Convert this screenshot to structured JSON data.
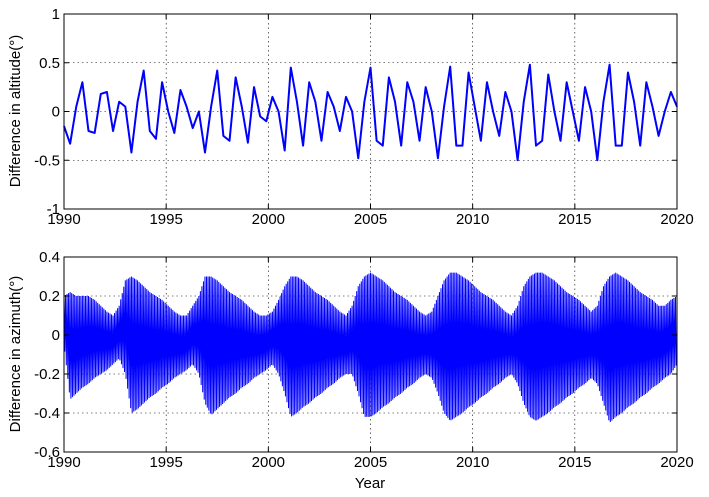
{
  "chart_data": [
    {
      "type": "line",
      "title": "",
      "xlabel": "",
      "ylabel": "Difference in altitude(°)",
      "xlim": [
        1990,
        2020
      ],
      "ylim": [
        -1,
        1
      ],
      "xticks": [
        "1990",
        "1995",
        "2000",
        "2005",
        "2010",
        "2015",
        "2020"
      ],
      "yticks": [
        "-1",
        "-0.5",
        "0",
        "0.5",
        "1"
      ],
      "grid": true,
      "series": [
        {
          "color": "#0000ff",
          "x": [
            1990.0,
            1990.3,
            1990.6,
            1990.9,
            1991.2,
            1991.5,
            1991.8,
            1992.1,
            1992.4,
            1992.7,
            1993.0,
            1993.3,
            1993.6,
            1993.9,
            1994.2,
            1994.5,
            1994.8,
            1995.1,
            1995.4,
            1995.7,
            1996.0,
            1996.3,
            1996.6,
            1996.9,
            1997.2,
            1997.5,
            1997.8,
            1998.1,
            1998.4,
            1998.7,
            1999.0,
            1999.3,
            1999.6,
            1999.9,
            2000.2,
            2000.5,
            2000.8,
            2001.1,
            2001.4,
            2001.7,
            2002.0,
            2002.3,
            2002.6,
            2002.9,
            2003.2,
            2003.5,
            2003.8,
            2004.1,
            2004.4,
            2004.7,
            2005.0,
            2005.3,
            2005.6,
            2005.9,
            2006.2,
            2006.5,
            2006.8,
            2007.1,
            2007.4,
            2007.7,
            2008.0,
            2008.3,
            2008.6,
            2008.9,
            2009.2,
            2009.5,
            2009.8,
            2010.1,
            2010.4,
            2010.7,
            2011.0,
            2011.3,
            2011.6,
            2011.9,
            2012.2,
            2012.5,
            2012.8,
            2013.1,
            2013.4,
            2013.7,
            2014.0,
            2014.3,
            2014.6,
            2014.9,
            2015.2,
            2015.5,
            2015.8,
            2016.1,
            2016.4,
            2016.7,
            2017.0,
            2017.3,
            2017.6,
            2017.9,
            2018.2,
            2018.5,
            2018.8,
            2019.1,
            2019.4,
            2019.7,
            2020.0
          ],
          "y": [
            -0.15,
            -0.33,
            0.05,
            0.3,
            -0.2,
            -0.22,
            0.18,
            0.2,
            -0.2,
            0.1,
            0.05,
            -0.42,
            0.1,
            0.42,
            -0.2,
            -0.28,
            0.3,
            0.0,
            -0.22,
            0.22,
            0.05,
            -0.17,
            0.0,
            -0.42,
            0.05,
            0.42,
            -0.25,
            -0.3,
            0.35,
            0.05,
            -0.32,
            0.25,
            -0.05,
            -0.1,
            0.15,
            0.0,
            -0.4,
            0.45,
            0.1,
            -0.35,
            0.3,
            0.1,
            -0.3,
            0.2,
            0.05,
            -0.2,
            0.15,
            0.0,
            -0.48,
            0.1,
            0.45,
            -0.3,
            -0.35,
            0.35,
            0.1,
            -0.35,
            0.3,
            0.1,
            -0.3,
            0.25,
            0.0,
            -0.48,
            0.05,
            0.46,
            -0.35,
            -0.35,
            0.4,
            0.05,
            -0.3,
            0.3,
            0.0,
            -0.25,
            0.2,
            0.0,
            -0.5,
            0.1,
            0.48,
            -0.35,
            -0.3,
            0.38,
            0.0,
            -0.3,
            0.3,
            0.0,
            -0.3,
            0.25,
            0.0,
            -0.5,
            0.1,
            0.48,
            -0.35,
            -0.35,
            0.4,
            0.1,
            -0.35,
            0.3,
            0.05,
            -0.25,
            0.0,
            0.2,
            0.05
          ]
        }
      ]
    },
    {
      "type": "line",
      "title": "",
      "xlabel": "Year",
      "ylabel": "Difference in azimuth(°)",
      "xlim": [
        1990,
        2020
      ],
      "ylim": [
        -0.6,
        0.4
      ],
      "xticks": [
        "1990",
        "1995",
        "2000",
        "2005",
        "2010",
        "2015",
        "2020"
      ],
      "yticks": [
        "-0.6",
        "-0.4",
        "-0.2",
        "0",
        "0.2",
        "0.4"
      ],
      "grid": true,
      "series": [
        {
          "color": "#0000ff",
          "x": [
            1990.0,
            1990.3,
            1990.6,
            1990.9,
            1991.2,
            1991.5,
            1991.8,
            1992.1,
            1992.4,
            1992.7,
            1993.0,
            1993.3,
            1993.6,
            1993.9,
            1994.2,
            1994.5,
            1994.8,
            1995.1,
            1995.4,
            1995.7,
            1996.0,
            1996.3,
            1996.6,
            1996.9,
            1997.2,
            1997.5,
            1997.8,
            1998.1,
            1998.4,
            1998.7,
            1999.0,
            1999.3,
            1999.6,
            1999.9,
            2000.2,
            2000.5,
            2000.8,
            2001.1,
            2001.4,
            2001.7,
            2002.0,
            2002.3,
            2002.6,
            2002.9,
            2003.2,
            2003.5,
            2003.8,
            2004.1,
            2004.4,
            2004.7,
            2005.0,
            2005.3,
            2005.6,
            2005.9,
            2006.2,
            2006.5,
            2006.8,
            2007.1,
            2007.4,
            2007.7,
            2008.0,
            2008.3,
            2008.6,
            2008.9,
            2009.2,
            2009.5,
            2009.8,
            2010.1,
            2010.4,
            2010.7,
            2011.0,
            2011.3,
            2011.6,
            2011.9,
            2012.2,
            2012.5,
            2012.8,
            2013.1,
            2013.4,
            2013.7,
            2014.0,
            2014.3,
            2014.6,
            2014.9,
            2015.2,
            2015.5,
            2015.8,
            2016.1,
            2016.4,
            2016.7,
            2017.0,
            2017.3,
            2017.6,
            2017.9,
            2018.2,
            2018.5,
            2018.8,
            2019.1,
            2019.4,
            2019.7,
            2020.0
          ],
          "ymax": [
            0.2,
            0.22,
            0.2,
            0.2,
            0.2,
            0.18,
            0.15,
            0.12,
            0.1,
            0.15,
            0.28,
            0.3,
            0.28,
            0.25,
            0.22,
            0.2,
            0.18,
            0.15,
            0.12,
            0.1,
            0.1,
            0.15,
            0.2,
            0.3,
            0.3,
            0.28,
            0.25,
            0.22,
            0.2,
            0.18,
            0.15,
            0.12,
            0.1,
            0.1,
            0.12,
            0.18,
            0.25,
            0.3,
            0.3,
            0.28,
            0.25,
            0.22,
            0.2,
            0.18,
            0.15,
            0.12,
            0.1,
            0.15,
            0.25,
            0.3,
            0.32,
            0.3,
            0.28,
            0.25,
            0.22,
            0.2,
            0.18,
            0.15,
            0.12,
            0.1,
            0.12,
            0.2,
            0.28,
            0.32,
            0.32,
            0.3,
            0.28,
            0.25,
            0.22,
            0.2,
            0.18,
            0.15,
            0.12,
            0.1,
            0.15,
            0.25,
            0.3,
            0.32,
            0.32,
            0.3,
            0.28,
            0.25,
            0.22,
            0.2,
            0.18,
            0.15,
            0.12,
            0.15,
            0.25,
            0.3,
            0.32,
            0.3,
            0.28,
            0.25,
            0.22,
            0.2,
            0.18,
            0.15,
            0.15,
            0.18,
            0.2
          ],
          "ymin": [
            -0.05,
            -0.33,
            -0.3,
            -0.27,
            -0.25,
            -0.22,
            -0.2,
            -0.18,
            -0.15,
            -0.12,
            -0.2,
            -0.4,
            -0.38,
            -0.35,
            -0.32,
            -0.3,
            -0.27,
            -0.25,
            -0.22,
            -0.2,
            -0.18,
            -0.15,
            -0.2,
            -0.35,
            -0.41,
            -0.38,
            -0.35,
            -0.32,
            -0.3,
            -0.27,
            -0.25,
            -0.22,
            -0.2,
            -0.18,
            -0.15,
            -0.2,
            -0.3,
            -0.42,
            -0.4,
            -0.37,
            -0.35,
            -0.32,
            -0.3,
            -0.27,
            -0.25,
            -0.22,
            -0.2,
            -0.2,
            -0.3,
            -0.42,
            -0.42,
            -0.4,
            -0.37,
            -0.35,
            -0.32,
            -0.3,
            -0.27,
            -0.25,
            -0.22,
            -0.2,
            -0.22,
            -0.3,
            -0.4,
            -0.44,
            -0.42,
            -0.4,
            -0.37,
            -0.35,
            -0.32,
            -0.3,
            -0.27,
            -0.25,
            -0.22,
            -0.2,
            -0.25,
            -0.35,
            -0.42,
            -0.44,
            -0.42,
            -0.4,
            -0.37,
            -0.35,
            -0.32,
            -0.3,
            -0.27,
            -0.25,
            -0.22,
            -0.25,
            -0.35,
            -0.45,
            -0.42,
            -0.4,
            -0.37,
            -0.35,
            -0.32,
            -0.3,
            -0.27,
            -0.25,
            -0.22,
            -0.2,
            -0.15
          ]
        }
      ]
    }
  ]
}
